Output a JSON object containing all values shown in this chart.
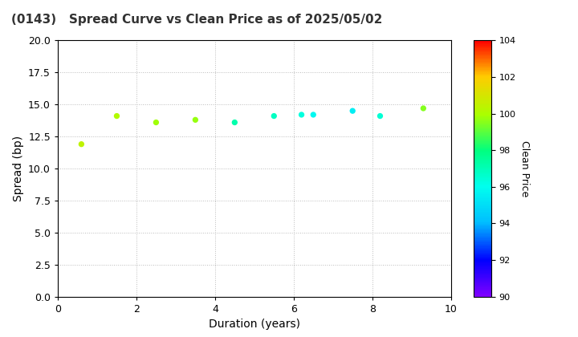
{
  "title": "(0143)   Spread Curve vs Clean Price as of 2025/05/02",
  "xlabel": "Duration (years)",
  "ylabel": "Spread (bp)",
  "colorbar_label": "Clean Price",
  "xlim": [
    0,
    10
  ],
  "ylim": [
    0.0,
    20.0
  ],
  "yticks": [
    0.0,
    2.5,
    5.0,
    7.5,
    10.0,
    12.5,
    15.0,
    17.5,
    20.0
  ],
  "xticks": [
    0,
    2,
    4,
    6,
    8,
    10
  ],
  "colorbar_min": 90,
  "colorbar_max": 104,
  "colorbar_ticks": [
    90,
    92,
    94,
    96,
    98,
    100,
    102,
    104
  ],
  "points": [
    {
      "duration": 0.6,
      "spread": 11.9,
      "price": 100.4
    },
    {
      "duration": 1.5,
      "spread": 14.1,
      "price": 100.1
    },
    {
      "duration": 2.5,
      "spread": 13.6,
      "price": 99.8
    },
    {
      "duration": 3.5,
      "spread": 13.8,
      "price": 99.7
    },
    {
      "duration": 4.5,
      "spread": 13.6,
      "price": 97.2
    },
    {
      "duration": 5.5,
      "spread": 14.1,
      "price": 96.8
    },
    {
      "duration": 6.2,
      "spread": 14.2,
      "price": 96.3
    },
    {
      "duration": 6.5,
      "spread": 14.2,
      "price": 95.8
    },
    {
      "duration": 7.5,
      "spread": 14.5,
      "price": 95.5
    },
    {
      "duration": 8.2,
      "spread": 14.1,
      "price": 96.5
    },
    {
      "duration": 9.3,
      "spread": 14.7,
      "price": 99.5
    }
  ],
  "marker_size": 18,
  "background_color": "#ffffff",
  "grid_color": "#bbbbbb",
  "title_fontsize": 11,
  "label_fontsize": 10,
  "tick_fontsize": 9,
  "cbar_tick_fontsize": 8,
  "cbar_label_fontsize": 9
}
